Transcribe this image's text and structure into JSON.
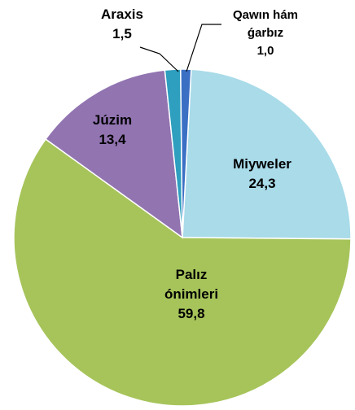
{
  "chart_data": {
    "type": "pie",
    "categories": [
      "Miyweler",
      "Palız ónimleri",
      "Júzim",
      "Araxis",
      "Qawın hám ǵarbız"
    ],
    "values": [
      24.3,
      59.8,
      13.4,
      1.5,
      1.0
    ],
    "value_labels": [
      "24,3",
      "59,8",
      "13,4",
      "1,5",
      "1,0"
    ],
    "colors": [
      "#a9dbe9",
      "#a6c45a",
      "#9274b1",
      "#2e9fbf",
      "#3a6fc4"
    ]
  }
}
